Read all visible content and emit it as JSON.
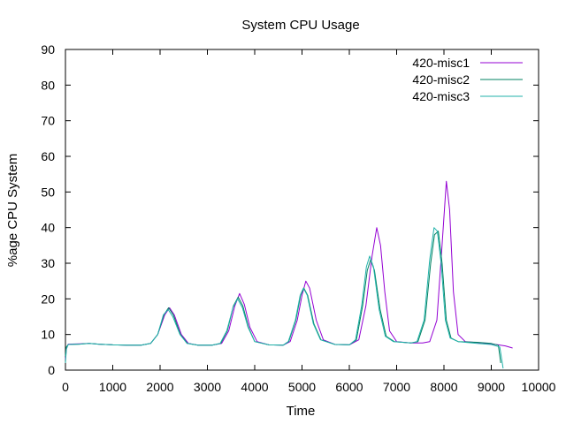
{
  "chart_data": {
    "type": "line",
    "title": "System CPU Usage",
    "xlabel": "Time",
    "ylabel": "%age CPU System",
    "xlim": [
      0,
      10000
    ],
    "ylim": [
      0,
      90
    ],
    "xticks": [
      0,
      1000,
      2000,
      3000,
      4000,
      5000,
      6000,
      7000,
      8000,
      9000,
      10000
    ],
    "yticks": [
      0,
      10,
      20,
      30,
      40,
      50,
      60,
      70,
      80,
      90
    ],
    "grid": false,
    "legend_position": "top-right",
    "series": [
      {
        "name": "420-misc1",
        "color": "#9400d3",
        "points": [
          [
            0,
            3
          ],
          [
            20,
            6
          ],
          [
            60,
            7.3
          ],
          [
            300,
            7.4
          ],
          [
            500,
            7.5
          ],
          [
            700,
            7.3
          ],
          [
            1000,
            7.1
          ],
          [
            1300,
            7
          ],
          [
            1600,
            7
          ],
          [
            1800,
            7.5
          ],
          [
            1950,
            10
          ],
          [
            2100,
            15.5
          ],
          [
            2200,
            17.5
          ],
          [
            2300,
            15.5
          ],
          [
            2450,
            10
          ],
          [
            2600,
            7.5
          ],
          [
            2800,
            7
          ],
          [
            3100,
            7
          ],
          [
            3300,
            7.5
          ],
          [
            3450,
            11
          ],
          [
            3580,
            18
          ],
          [
            3680,
            21.5
          ],
          [
            3780,
            18.5
          ],
          [
            3900,
            12
          ],
          [
            4050,
            8
          ],
          [
            4300,
            7.1
          ],
          [
            4600,
            7
          ],
          [
            4750,
            8
          ],
          [
            4900,
            14
          ],
          [
            5000,
            21
          ],
          [
            5080,
            25
          ],
          [
            5160,
            23
          ],
          [
            5300,
            14
          ],
          [
            5450,
            8.5
          ],
          [
            5700,
            7.2
          ],
          [
            6000,
            7.1
          ],
          [
            6200,
            8.5
          ],
          [
            6350,
            18
          ],
          [
            6480,
            32
          ],
          [
            6580,
            40
          ],
          [
            6660,
            35
          ],
          [
            6750,
            22
          ],
          [
            6850,
            11
          ],
          [
            7000,
            8
          ],
          [
            7300,
            7.6
          ],
          [
            7550,
            7.6
          ],
          [
            7700,
            8
          ],
          [
            7850,
            14
          ],
          [
            7950,
            33
          ],
          [
            8050,
            53
          ],
          [
            8120,
            45
          ],
          [
            8200,
            22
          ],
          [
            8300,
            10
          ],
          [
            8450,
            8
          ],
          [
            8800,
            7.6
          ],
          [
            9100,
            7.2
          ],
          [
            9300,
            6.8
          ],
          [
            9450,
            6.2
          ]
        ]
      },
      {
        "name": "420-misc2",
        "color": "#008060",
        "points": [
          [
            0,
            4
          ],
          [
            20,
            6.5
          ],
          [
            60,
            7.2
          ],
          [
            300,
            7.3
          ],
          [
            500,
            7.5
          ],
          [
            700,
            7.3
          ],
          [
            1000,
            7.1
          ],
          [
            1300,
            7
          ],
          [
            1600,
            7
          ],
          [
            1800,
            7.5
          ],
          [
            1950,
            10
          ],
          [
            2080,
            15.5
          ],
          [
            2180,
            17.5
          ],
          [
            2280,
            15.5
          ],
          [
            2430,
            10
          ],
          [
            2580,
            7.5
          ],
          [
            2800,
            7
          ],
          [
            3100,
            7
          ],
          [
            3280,
            7.5
          ],
          [
            3420,
            11
          ],
          [
            3550,
            18
          ],
          [
            3650,
            20.5
          ],
          [
            3750,
            18
          ],
          [
            3870,
            12
          ],
          [
            4000,
            8
          ],
          [
            4300,
            7.1
          ],
          [
            4600,
            7
          ],
          [
            4720,
            8
          ],
          [
            4870,
            14
          ],
          [
            4970,
            21
          ],
          [
            5040,
            23
          ],
          [
            5120,
            21
          ],
          [
            5250,
            13
          ],
          [
            5400,
            8.5
          ],
          [
            5700,
            7.2
          ],
          [
            6000,
            7.1
          ],
          [
            6150,
            8.5
          ],
          [
            6280,
            18
          ],
          [
            6380,
            28
          ],
          [
            6450,
            31
          ],
          [
            6530,
            28
          ],
          [
            6650,
            17
          ],
          [
            6780,
            9.5
          ],
          [
            6950,
            8
          ],
          [
            7300,
            7.6
          ],
          [
            7450,
            8
          ],
          [
            7600,
            14
          ],
          [
            7720,
            30
          ],
          [
            7800,
            38
          ],
          [
            7880,
            39
          ],
          [
            7960,
            30
          ],
          [
            8050,
            14
          ],
          [
            8150,
            9
          ],
          [
            8300,
            8
          ],
          [
            8700,
            7.8
          ],
          [
            9000,
            7.5
          ],
          [
            9150,
            7
          ],
          [
            9200,
            2
          ]
        ]
      },
      {
        "name": "420-misc3",
        "color": "#20b2aa",
        "points": [
          [
            0,
            2
          ],
          [
            20,
            6
          ],
          [
            60,
            7.2
          ],
          [
            300,
            7.3
          ],
          [
            500,
            7.5
          ],
          [
            700,
            7.3
          ],
          [
            1000,
            7.1
          ],
          [
            1300,
            7
          ],
          [
            1600,
            7
          ],
          [
            1800,
            7.5
          ],
          [
            1950,
            10
          ],
          [
            2070,
            15.5
          ],
          [
            2170,
            17
          ],
          [
            2270,
            15
          ],
          [
            2420,
            10
          ],
          [
            2570,
            7.5
          ],
          [
            2800,
            7
          ],
          [
            3100,
            7
          ],
          [
            3270,
            7.5
          ],
          [
            3410,
            11
          ],
          [
            3540,
            17.5
          ],
          [
            3640,
            20
          ],
          [
            3740,
            17.5
          ],
          [
            3860,
            12
          ],
          [
            4000,
            8
          ],
          [
            4300,
            7.1
          ],
          [
            4600,
            7
          ],
          [
            4710,
            8
          ],
          [
            4860,
            14
          ],
          [
            4960,
            21
          ],
          [
            5030,
            23
          ],
          [
            5110,
            21
          ],
          [
            5240,
            13
          ],
          [
            5390,
            8.5
          ],
          [
            5700,
            7.2
          ],
          [
            6000,
            7.1
          ],
          [
            6130,
            8.5
          ],
          [
            6260,
            18
          ],
          [
            6360,
            29
          ],
          [
            6430,
            32
          ],
          [
            6510,
            29
          ],
          [
            6630,
            17
          ],
          [
            6760,
            9.5
          ],
          [
            6930,
            8
          ],
          [
            7300,
            7.6
          ],
          [
            7430,
            8
          ],
          [
            7580,
            14
          ],
          [
            7700,
            31
          ],
          [
            7790,
            40
          ],
          [
            7860,
            39
          ],
          [
            7940,
            30
          ],
          [
            8030,
            14
          ],
          [
            8130,
            9
          ],
          [
            8300,
            8
          ],
          [
            8700,
            7.5
          ],
          [
            9000,
            7.2
          ],
          [
            9180,
            6.5
          ],
          [
            9250,
            0.5
          ]
        ]
      }
    ]
  }
}
